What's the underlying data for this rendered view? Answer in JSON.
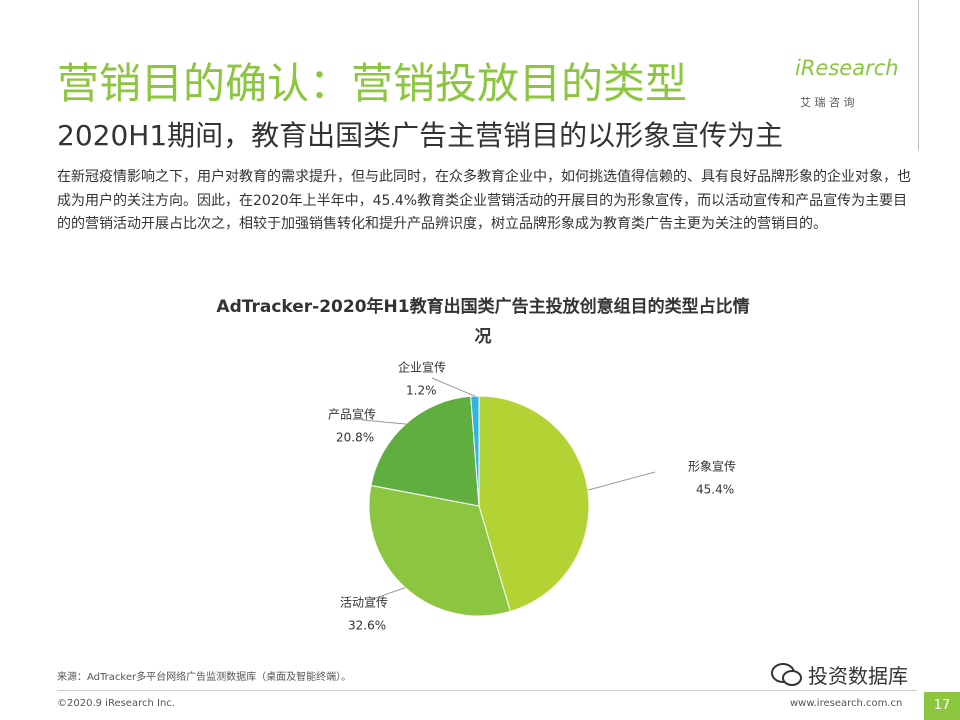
{
  "header": {
    "title": "营销目的确认：营销投放目的类型",
    "subtitle": "2020H1期间，教育出国类广告主营销目的以形象宣传为主",
    "logo": "iResearch",
    "logo_cn": "艾 瑞 咨 询"
  },
  "body": "在新冠疫情影响之下，用户对教育的需求提升，但与此同时，在众多教育企业中，如何挑选值得信赖的、具有良好品牌形象的企业对象，也成为用户的关注方向。因此，在2020年上半年中，45.4%教育类企业营销活动的开展目的为形象宣传，而以活动宣传和产品宣传为主要目的的营销活动开展占比次之，相较于加强销售转化和提升产品辨识度，树立品牌形象成为教育类广告主更为关注的营销目的。",
  "chart_data": {
    "type": "pie",
    "title": "AdTracker-2020年H1教育出国类广告主投放创意组目的类型占比情况",
    "categories": [
      "形象宣传",
      "活动宣传",
      "产品宣传",
      "企业宣传"
    ],
    "values": [
      45.4,
      32.6,
      20.8,
      1.2
    ],
    "value_labels": [
      "45.4%",
      "32.6%",
      "20.8%",
      "1.2%"
    ],
    "colors": [
      "#b3d335",
      "#8cc540",
      "#5fae3f",
      "#2cb5e8"
    ]
  },
  "footer": {
    "source": "来源：AdTracker多平台网络广告监测数据库（桌面及智能终端）。",
    "copyright": "©2020.9 iResearch Inc.",
    "website": "www.iresearch.com.cn",
    "page": "17",
    "watermark": "投资数据库"
  }
}
